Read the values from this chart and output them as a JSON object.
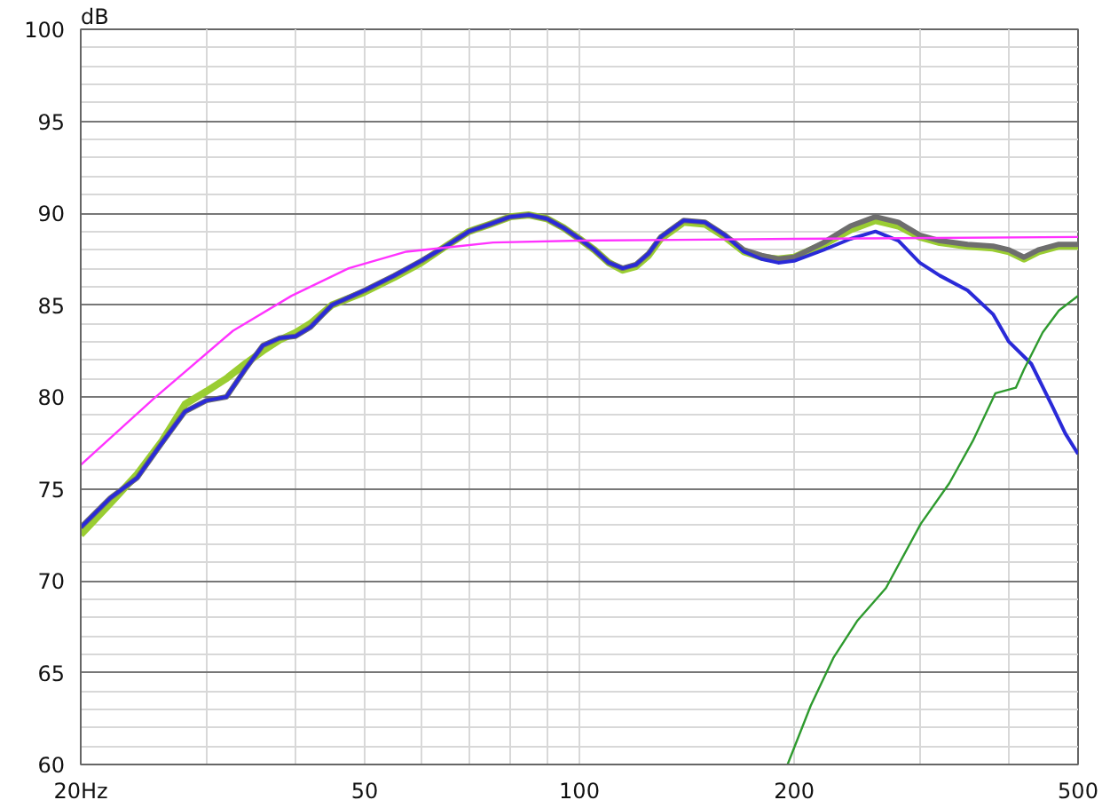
{
  "chart_data": {
    "type": "line",
    "ylabel": "dB",
    "log": "x",
    "grid": true,
    "marker": "none",
    "line_style": "solid",
    "xlim": [
      20,
      500
    ],
    "ylim": [
      60,
      100
    ],
    "xticks": [
      {
        "value": 20,
        "label": "20Hz"
      },
      {
        "value": 30,
        "label": null
      },
      {
        "value": 40,
        "label": null
      },
      50,
      {
        "value": 60,
        "label": null
      },
      {
        "value": 70,
        "label": null
      },
      {
        "value": 80,
        "label": null
      },
      {
        "value": 90,
        "label": null
      },
      100,
      200,
      {
        "value": 300,
        "label": null
      },
      {
        "value": 400,
        "label": null
      },
      500
    ],
    "yticks": [
      60,
      {
        "value": 61,
        "label": null
      },
      {
        "value": 62,
        "label": null
      },
      {
        "value": 63,
        "label": null
      },
      {
        "value": 64,
        "label": null
      },
      65,
      {
        "value": 66,
        "label": null
      },
      {
        "value": 67,
        "label": null
      },
      {
        "value": 68,
        "label": null
      },
      {
        "value": 69,
        "label": null
      },
      70,
      {
        "value": 71,
        "label": null
      },
      {
        "value": 72,
        "label": null
      },
      {
        "value": 73,
        "label": null
      },
      {
        "value": 74,
        "label": null
      },
      75,
      {
        "value": 76,
        "label": null
      },
      {
        "value": 77,
        "label": null
      },
      {
        "value": 78,
        "label": null
      },
      {
        "value": 79,
        "label": null
      },
      80,
      {
        "value": 81,
        "label": null
      },
      {
        "value": 82,
        "label": null
      },
      {
        "value": 83,
        "label": null
      },
      {
        "value": 84,
        "label": null
      },
      85,
      {
        "value": 86,
        "label": null
      },
      {
        "value": 87,
        "label": null
      },
      {
        "value": 88,
        "label": null
      },
      {
        "value": 89,
        "label": null
      },
      90,
      {
        "value": 91,
        "label": null
      },
      {
        "value": 92,
        "label": null
      },
      {
        "value": 93,
        "label": null
      },
      {
        "value": 94,
        "label": null
      },
      95,
      {
        "value": 96,
        "label": null
      },
      {
        "value": 97,
        "label": null
      },
      {
        "value": 98,
        "label": null
      },
      {
        "value": 99,
        "label": null
      },
      100
    ],
    "series": [
      {
        "color": "#9acd32",
        "x": [
          20,
          22,
          24,
          26,
          28,
          30,
          32,
          34,
          36,
          38,
          40,
          42,
          45,
          50,
          55,
          60,
          65,
          70,
          75,
          80,
          85,
          90,
          95,
          100,
          105,
          110,
          115,
          120,
          125,
          130,
          140,
          150,
          160,
          170,
          180,
          190,
          200,
          220,
          240,
          260,
          280,
          300,
          320,
          350,
          380,
          400,
          420,
          440,
          470,
          500
        ],
        "values": [
          72.5,
          74.2,
          75.8,
          77.6,
          79.6,
          80.3,
          81.0,
          81.8,
          82.5,
          83.1,
          83.5,
          84.0,
          85.0,
          85.7,
          86.5,
          87.3,
          88.2,
          89.0,
          89.4,
          89.8,
          89.9,
          89.7,
          89.2,
          88.6,
          88.0,
          87.3,
          86.9,
          87.1,
          87.7,
          88.6,
          89.5,
          89.4,
          88.7,
          87.9,
          87.6,
          87.5,
          87.6,
          88.3,
          89.1,
          89.6,
          89.3,
          88.7,
          88.4,
          88.2,
          88.1,
          87.9,
          87.5,
          87.9,
          88.2,
          88.2
        ]
      },
      {
        "color": "#6e6e6e",
        "x": [
          20,
          22,
          24,
          26,
          28,
          30,
          32,
          34,
          36,
          38,
          40,
          42,
          45,
          50,
          55,
          60,
          65,
          70,
          75,
          80,
          85,
          90,
          95,
          100,
          105,
          110,
          115,
          120,
          125,
          130,
          140,
          150,
          160,
          170,
          180,
          190,
          200,
          220,
          240,
          260,
          280,
          300,
          320,
          350,
          380,
          400,
          420,
          440,
          470,
          500
        ],
        "values": [
          72.9,
          74.5,
          75.6,
          77.5,
          79.2,
          79.8,
          80.0,
          81.5,
          82.8,
          83.2,
          83.3,
          83.8,
          85.0,
          85.8,
          86.6,
          87.4,
          88.2,
          89.0,
          89.4,
          89.8,
          89.9,
          89.7,
          89.2,
          88.6,
          88.0,
          87.3,
          87.0,
          87.2,
          87.8,
          88.7,
          89.6,
          89.5,
          88.8,
          88.0,
          87.7,
          87.5,
          87.6,
          88.4,
          89.3,
          89.8,
          89.5,
          88.8,
          88.5,
          88.3,
          88.2,
          88.0,
          87.6,
          88.0,
          88.3,
          88.3
        ]
      },
      {
        "color": "#2a2ad8",
        "x": [
          20,
          22,
          24,
          26,
          28,
          30,
          32,
          34,
          36,
          38,
          40,
          42,
          45,
          50,
          55,
          60,
          65,
          70,
          75,
          80,
          85,
          90,
          95,
          100,
          105,
          110,
          115,
          120,
          125,
          130,
          140,
          150,
          160,
          170,
          180,
          190,
          200,
          220,
          240,
          260,
          280,
          300,
          320,
          350,
          380,
          400,
          430,
          460,
          480,
          500
        ],
        "values": [
          72.9,
          74.5,
          75.6,
          77.5,
          79.2,
          79.8,
          80.0,
          81.5,
          82.8,
          83.2,
          83.3,
          83.8,
          85.0,
          85.8,
          86.6,
          87.4,
          88.2,
          89.0,
          89.4,
          89.8,
          89.9,
          89.7,
          89.2,
          88.6,
          88.0,
          87.3,
          87.0,
          87.2,
          87.8,
          88.7,
          89.6,
          89.5,
          88.8,
          87.9,
          87.5,
          87.3,
          87.4,
          88.0,
          88.6,
          89.0,
          88.5,
          87.3,
          86.6,
          85.8,
          84.5,
          83.0,
          81.8,
          79.5,
          78.0,
          76.9
        ]
      },
      {
        "color": "#2e9a2e",
        "x": [
          195.8,
          211,
          227,
          245,
          269,
          301,
          330,
          356,
          383,
          409,
          420,
          446,
          470,
          500
        ],
        "values": [
          60,
          63.2,
          65.8,
          67.8,
          69.6,
          73.1,
          75.3,
          77.6,
          80.2,
          80.5,
          81.5,
          83.5,
          84.7,
          85.5
        ]
      },
      {
        "color": "#ff33ff",
        "x": [
          20,
          25.3,
          32.7,
          39.5,
          47.5,
          57.2,
          75.7,
          100,
          200,
          500
        ],
        "values": [
          76.3,
          79.9,
          83.6,
          85.5,
          87.0,
          87.9,
          88.4,
          88.5,
          88.6,
          88.7
        ]
      }
    ]
  }
}
